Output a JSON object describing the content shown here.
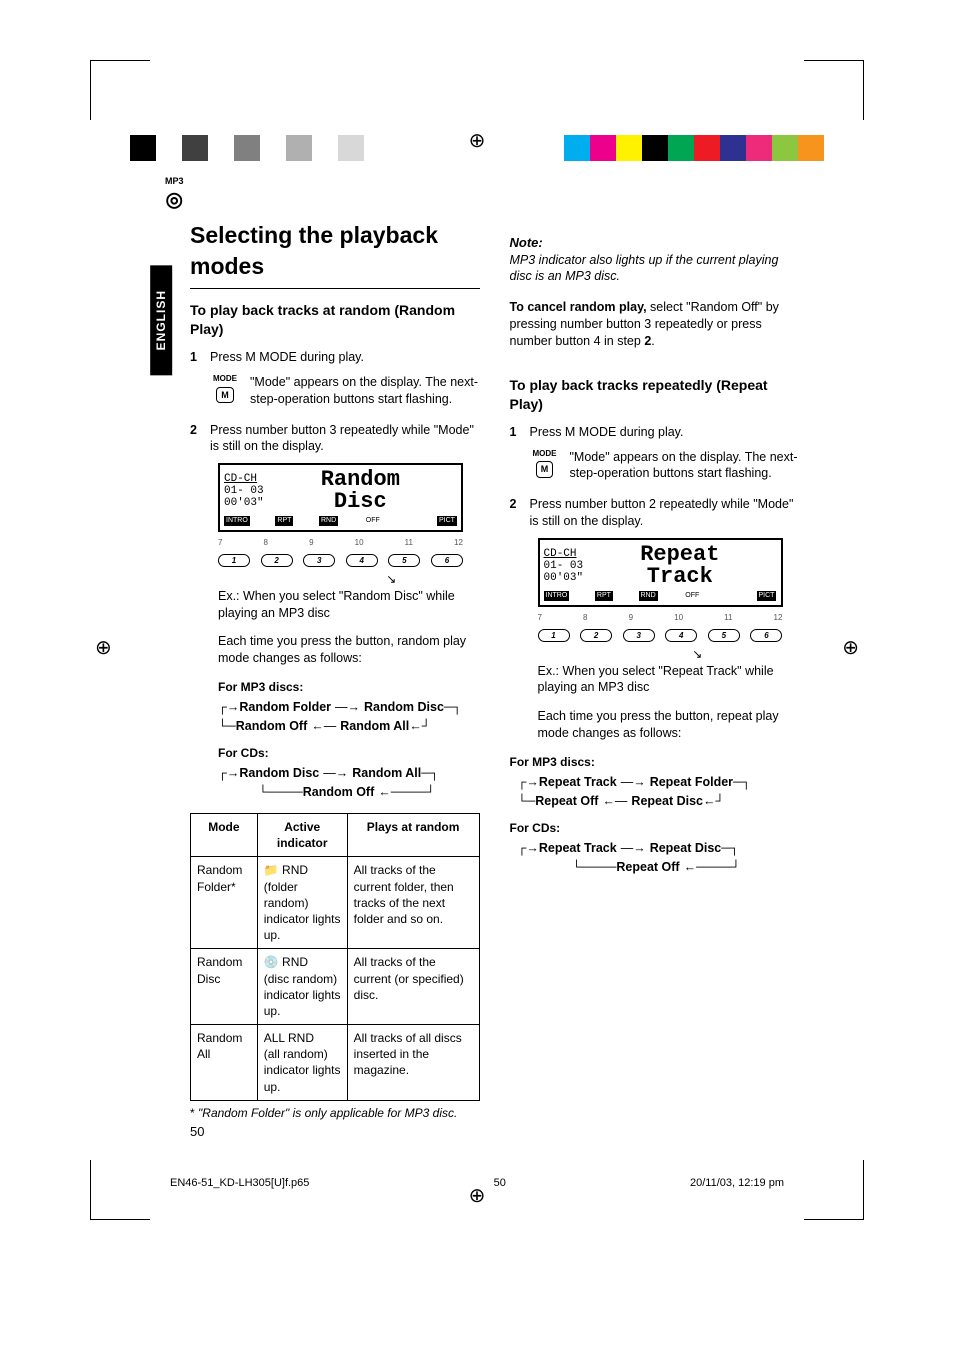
{
  "colorbars": {
    "left": [
      "#000000",
      "#ffffff",
      "#404040",
      "#ffffff",
      "#808080",
      "#ffffff",
      "#b0b0b0",
      "#ffffff",
      "#d8d8d8",
      "#ffffff"
    ],
    "right": [
      "#00aeef",
      "#ec008c",
      "#fff200",
      "#000000",
      "#00a651",
      "#ed1c24",
      "#2e3192",
      "#ee2a7b",
      "#8dc63f",
      "#f7941e"
    ]
  },
  "badge": {
    "mp3": "MP3"
  },
  "langTab": "ENGLISH",
  "left": {
    "h1": "Selecting the playback modes",
    "h2": "To play back tracks at random (Random Play)",
    "step1": {
      "num": "1",
      "text": "Press M MODE during play."
    },
    "modeIcon": {
      "label": "MODE",
      "btn": "M"
    },
    "modeDesc": "\"Mode\" appears on the display. The next-step-operation buttons start flashing.",
    "step2": {
      "num": "2",
      "text": "Press number button 3 repeatedly while \"Mode\" is still on the display."
    },
    "display": {
      "cd": "CD-CH",
      "line1": "01- 03",
      "line2": "00'03\"",
      "big1": "Random",
      "big2": "Disc",
      "strip": [
        "INTRO",
        "RPT",
        "RND",
        "OFF",
        "",
        "PICT"
      ]
    },
    "btnNums": [
      "7",
      "8",
      "9",
      "10",
      "11",
      "12"
    ],
    "btns": [
      "1",
      "2",
      "3",
      "4",
      "5",
      "6"
    ],
    "ex": "Ex.: When you select \"Random Disc\" while playing an MP3 disc",
    "each": "Each time you press the button, random play mode changes as follows:",
    "mp3label": "For MP3 discs:",
    "mp3flow": [
      "Random Folder",
      "Random Disc",
      "Random All",
      "Random Off"
    ],
    "cdlabel": "For CDs:",
    "cdflow": [
      "Random Disc",
      "Random All",
      "Random Off"
    ],
    "table": {
      "headers": [
        "Mode",
        "Active indicator",
        "Plays at random"
      ],
      "rows": [
        [
          "Random Folder*",
          "📁 RND\n(folder random) indicator lights up.",
          "All tracks of the current folder, then tracks of the next folder and so on."
        ],
        [
          "Random Disc",
          "💿 RND\n(disc random) indicator lights up.",
          "All tracks of the current (or specified) disc."
        ],
        [
          "Random All",
          "ALL RND\n(all random) indicator lights up.",
          "All tracks of all discs inserted in the magazine."
        ]
      ]
    },
    "footnote": "\"Random Folder\" is only applicable for MP3 disc.",
    "footnoteAst": "*",
    "pageNum": "50"
  },
  "right": {
    "noteTitle": "Note:",
    "noteBody": "MP3 indicator also lights up if the current playing disc is an MP3 disc.",
    "cancel": {
      "bold": "To cancel random play,",
      "rest": " select \"Random Off\" by pressing number button 3 repeatedly or press number button 4 in step ",
      "stepBold": "2",
      "period": "."
    },
    "h2": "To play back tracks repeatedly (Repeat Play)",
    "step1": {
      "num": "1",
      "text": "Press M MODE during play."
    },
    "modeIcon": {
      "label": "MODE",
      "btn": "M"
    },
    "modeDesc": "\"Mode\" appears on the display. The next-step-operation buttons start flashing.",
    "step2": {
      "num": "2",
      "text": "Press number button 2 repeatedly while \"Mode\" is still on the display."
    },
    "display": {
      "cd": "CD-CH",
      "line1": "01- 03",
      "line2": "00'03\"",
      "big1": "Repeat",
      "big2": "Track",
      "strip": [
        "INTRO",
        "RPT",
        "RND",
        "OFF",
        "",
        "PICT"
      ]
    },
    "btnNums": [
      "7",
      "8",
      "9",
      "10",
      "11",
      "12"
    ],
    "btns": [
      "1",
      "2",
      "3",
      "4",
      "5",
      "6"
    ],
    "ex": "Ex.: When you select \"Repeat Track\" while playing an MP3 disc",
    "each": "Each time you press the button, repeat play mode changes as follows:",
    "mp3label": "For MP3 discs:",
    "mp3flow": [
      "Repeat Track",
      "Repeat Folder",
      "Repeat Disc",
      "Repeat Off"
    ],
    "cdlabel": "For CDs:",
    "cdflow": [
      "Repeat Track",
      "Repeat Disc",
      "Repeat Off"
    ]
  },
  "footer": {
    "file": "EN46-51_KD-LH305[U]f.p65",
    "page": "50",
    "date": "20/11/03, 12:19 pm"
  }
}
